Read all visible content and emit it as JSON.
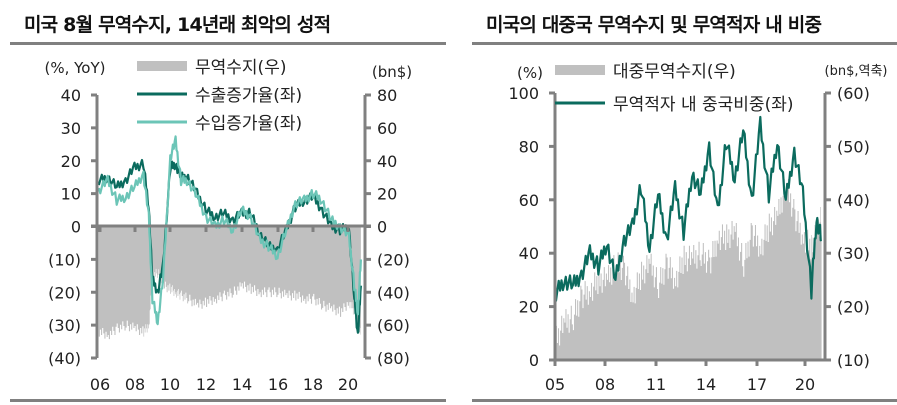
{
  "charts": [
    {
      "title": "미국 8월 무역수지, 14년래 최악의 성적",
      "left_unit": "(%, YoY)",
      "right_unit": "(bn$)",
      "legend": [
        "무역수지(우)",
        "수출증가율(좌)",
        "수입증가율(좌)"
      ]
    },
    {
      "title": "미국의 대중국 무역수지 및 무역적자 내 비중",
      "left_unit": "(%)",
      "right_unit": "(bn$,역축)",
      "legend": [
        "대중무역수지(우)",
        "무역적자 내 중국비중(좌)"
      ]
    }
  ],
  "colors": {
    "bar": "#c0c0c0",
    "dark_line": "#0b6b5e",
    "light_line": "#6cc5b7",
    "axis": "#808080"
  },
  "chart_data": [
    {
      "type": "line+bar",
      "title": "미국 8월 무역수지, 14년래 최악의 성적",
      "xlabel": "",
      "ylabel": "(%, YoY)",
      "y2label": "(bn$)",
      "x_ticks": [
        "06",
        "08",
        "10",
        "12",
        "14",
        "16",
        "18",
        "20"
      ],
      "y_ticks": [
        "40",
        "30",
        "20",
        "10",
        "0",
        "(10)",
        "(20)",
        "(30)",
        "(40)"
      ],
      "y2_ticks": [
        "80",
        "60",
        "40",
        "20",
        "0",
        "(20)",
        "(40)",
        "(60)",
        "(80)"
      ],
      "ylim": [
        -40,
        40
      ],
      "y2lim": [
        -80,
        80
      ],
      "x": [
        2006.0,
        2006.5,
        2007.0,
        2007.5,
        2008.0,
        2008.5,
        2008.8,
        2009.0,
        2009.3,
        2009.6,
        2010.0,
        2010.3,
        2010.6,
        2011.0,
        2011.5,
        2012.0,
        2012.5,
        2013.0,
        2013.5,
        2014.0,
        2014.5,
        2015.0,
        2015.5,
        2016.0,
        2016.5,
        2017.0,
        2017.5,
        2018.0,
        2018.5,
        2019.0,
        2019.5,
        2020.0,
        2020.3,
        2020.5,
        2020.67
      ],
      "series": [
        {
          "name": "무역수지(우)",
          "axis": "right",
          "type": "bar",
          "values": [
            -64,
            -66,
            -62,
            -60,
            -62,
            -64,
            -60,
            -30,
            -28,
            -36,
            -38,
            -40,
            -42,
            -44,
            -48,
            -46,
            -44,
            -42,
            -40,
            -36,
            -38,
            -40,
            -40,
            -40,
            -42,
            -42,
            -44,
            -44,
            -48,
            -50,
            -52,
            -46,
            -52,
            -58,
            -67
          ]
        },
        {
          "name": "수출증가율(좌)",
          "axis": "left",
          "type": "line",
          "values": [
            14,
            15,
            12,
            14,
            18,
            19,
            6,
            -16,
            -20,
            -12,
            18,
            19,
            15,
            15,
            10,
            5,
            3,
            4,
            2,
            4,
            4,
            -2,
            -6,
            -7,
            -1,
            6,
            8,
            9,
            5,
            0,
            -1,
            0,
            -22,
            -33,
            -18
          ]
        },
        {
          "name": "수입증가율(좌)",
          "axis": "left",
          "type": "line",
          "values": [
            11,
            14,
            8,
            9,
            12,
            16,
            3,
            -22,
            -29,
            -16,
            21,
            26,
            14,
            14,
            9,
            3,
            0,
            2,
            -1,
            5,
            3,
            -4,
            -6,
            -9,
            -1,
            7,
            8,
            10,
            8,
            2,
            0,
            -3,
            -18,
            -26,
            -10
          ]
        }
      ]
    },
    {
      "type": "line+bar",
      "title": "미국의 대중국 무역수지 및 무역적자 내 비중",
      "xlabel": "",
      "ylabel": "(%)",
      "y2label": "(bn$,역축)",
      "x_ticks": [
        "05",
        "08",
        "11",
        "14",
        "17",
        "20"
      ],
      "y_ticks": [
        "100",
        "80",
        "60",
        "40",
        "20",
        "0"
      ],
      "y2_ticks": [
        "(60)",
        "(50)",
        "(40)",
        "(30)",
        "(20)",
        "(10)"
      ],
      "ylim": [
        0,
        100
      ],
      "y2lim": [
        -10,
        -60
      ],
      "x": [
        2005.0,
        2005.5,
        2006.0,
        2006.5,
        2007.0,
        2007.5,
        2008.0,
        2008.5,
        2009.0,
        2009.5,
        2010.0,
        2010.5,
        2011.0,
        2011.5,
        2012.0,
        2012.5,
        2013.0,
        2013.5,
        2014.0,
        2014.5,
        2015.0,
        2015.5,
        2016.0,
        2016.5,
        2017.0,
        2017.5,
        2018.0,
        2018.5,
        2019.0,
        2019.5,
        2020.0,
        2020.3,
        2020.6
      ],
      "series": [
        {
          "name": "대중무역수지(우)",
          "axis": "right",
          "type": "bar",
          "values": [
            -14,
            -17,
            -18,
            -22,
            -23,
            -25,
            -25,
            -28,
            -27,
            -22,
            -26,
            -28,
            -24,
            -28,
            -25,
            -29,
            -29,
            -30,
            -28,
            -33,
            -33,
            -34,
            -28,
            -34,
            -31,
            -35,
            -37,
            -43,
            -37,
            -33,
            -31,
            -34,
            -37
          ]
        },
        {
          "name": "무역적자 내 중국비중(좌)",
          "axis": "left",
          "type": "line",
          "values": [
            25,
            30,
            28,
            32,
            40,
            35,
            44,
            30,
            45,
            50,
            65,
            42,
            62,
            45,
            64,
            48,
            70,
            62,
            80,
            55,
            82,
            68,
            86,
            60,
            88,
            62,
            82,
            60,
            78,
            62,
            26,
            53,
            45
          ]
        }
      ]
    }
  ]
}
